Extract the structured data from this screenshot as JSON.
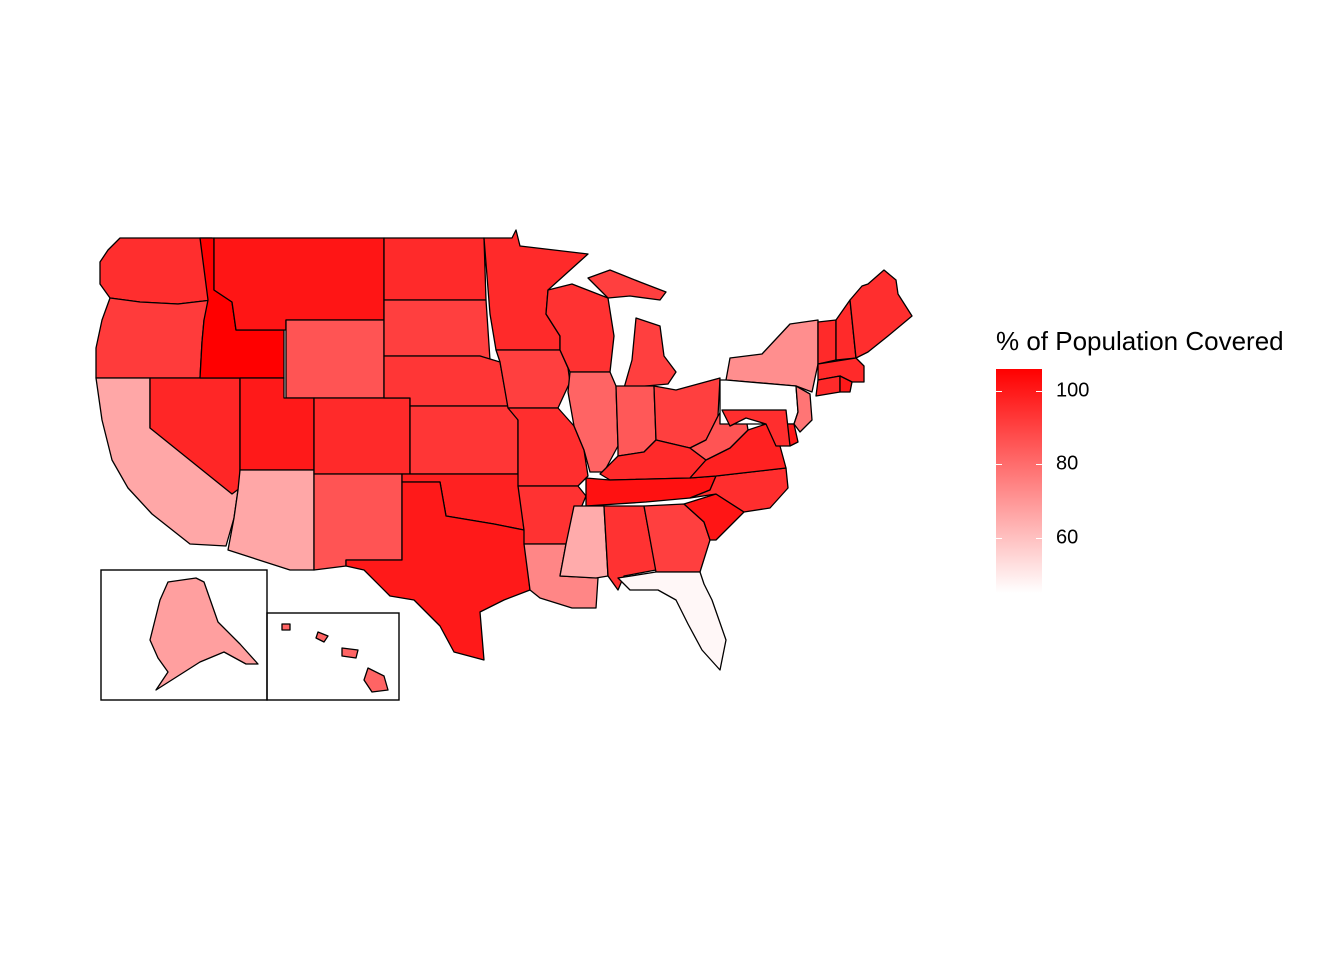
{
  "legend": {
    "title": "% of Population Covered",
    "ticks": [
      {
        "label": "100",
        "value": 100
      },
      {
        "label": "80",
        "value": 80
      },
      {
        "label": "60",
        "value": 60
      }
    ],
    "min": 45,
    "max": 106,
    "low_color": "#ffffff",
    "high_color": "#ff0000"
  },
  "states": {
    "WA": 95,
    "OR": 92,
    "CA": 66,
    "NV": 97,
    "ID": 106,
    "MT": 101,
    "WY": 86,
    "UT": 100,
    "AZ": 66,
    "CO": 96,
    "NM": 86,
    "ND": 96,
    "SD": 91,
    "NE": 93,
    "KS": 93,
    "OK": 98,
    "TX": 100,
    "MN": 96,
    "IA": 91,
    "MO": 95,
    "AR": 94,
    "LA": 74,
    "WI": 94,
    "IL": 82,
    "MI": 91,
    "IN": 85,
    "OH": 91,
    "KY": 96,
    "TN": 102,
    "MS": 65,
    "AL": 94,
    "GA": 91,
    "FL": 47,
    "SC": 101,
    "NC": 95,
    "VA": 98,
    "WV": 86,
    "ME": 95,
    "NH": 96,
    "VT": 96,
    "MA": 96,
    "RI": 100,
    "CT": 96,
    "NY": 72,
    "PA": 45,
    "NJ": 78,
    "DE": 100,
    "MD": 95,
    "AK": 68,
    "HI": 82
  }
}
